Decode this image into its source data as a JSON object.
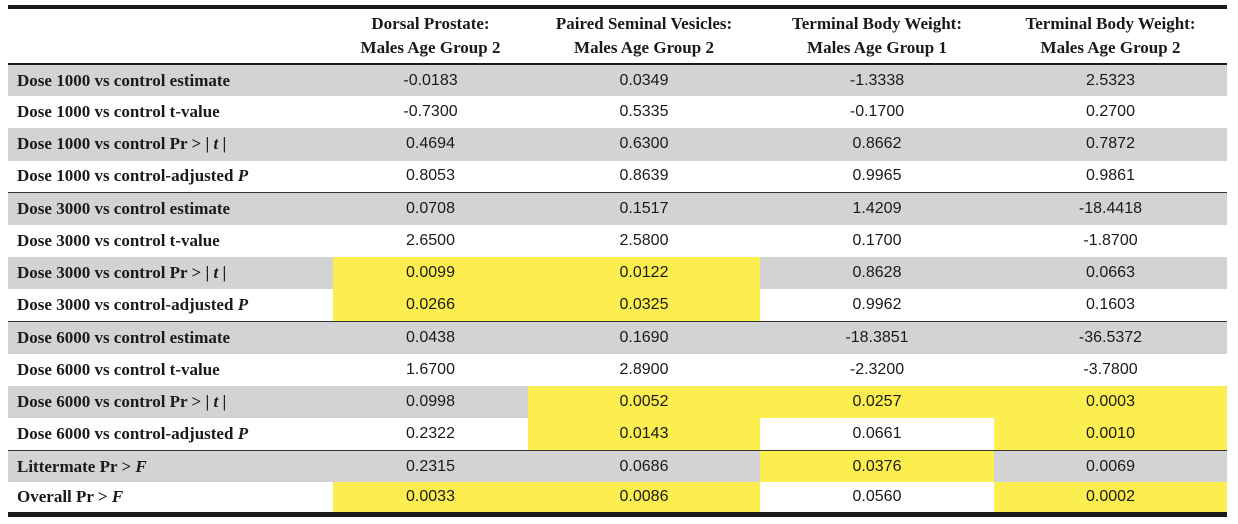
{
  "table": {
    "headers": [
      "",
      "Dorsal Prostate: Males Age Group 2",
      "Paired Seminal Vesicles: Males Age Group 2",
      "Terminal Body Weight: Males Age Group 1",
      "Terminal Body Weight: Males Age Group 2"
    ],
    "header_lines": [
      [
        "",
        ""
      ],
      [
        "Dorsal Prostate:",
        "Males Age Group 2"
      ],
      [
        "Paired Seminal Vesicles:",
        "Males Age Group 2"
      ],
      [
        "Terminal Body Weight:",
        "Males Age Group 1"
      ],
      [
        "Terminal Body Weight:",
        "Males Age Group 2"
      ]
    ],
    "rows": [
      {
        "label": "Dose 1000 vs control estimate",
        "label_parts": [
          "Dose 1000 vs control estimate"
        ],
        "values": [
          "-0.0183",
          "0.0349",
          "-1.3338",
          "2.5323"
        ],
        "highlight": [
          false,
          false,
          false,
          false
        ],
        "shade": "gray",
        "group_start": false
      },
      {
        "label": "Dose 1000 vs control t-value",
        "label_parts": [
          "Dose 1000 vs control t-value"
        ],
        "values": [
          "-0.7300",
          "0.5335",
          "-0.1700",
          "0.2700"
        ],
        "highlight": [
          false,
          false,
          false,
          false
        ],
        "shade": "white",
        "group_start": false
      },
      {
        "label": "Dose 1000 vs control Pr > | t |",
        "label_parts": [
          "Dose 1000 vs control Pr > | ",
          "t",
          " |"
        ],
        "values": [
          "0.4694",
          "0.6300",
          "0.8662",
          "0.7872"
        ],
        "highlight": [
          false,
          false,
          false,
          false
        ],
        "shade": "gray",
        "group_start": false
      },
      {
        "label": "Dose 1000 vs control-adjusted P",
        "label_parts": [
          "Dose 1000 vs control-adjusted ",
          "P",
          ""
        ],
        "values": [
          "0.8053",
          "0.8639",
          "0.9965",
          "0.9861"
        ],
        "highlight": [
          false,
          false,
          false,
          false
        ],
        "shade": "white",
        "group_start": false
      },
      {
        "label": "Dose 3000 vs control estimate",
        "label_parts": [
          "Dose 3000 vs control estimate"
        ],
        "values": [
          "0.0708",
          "0.1517",
          "1.4209",
          "-18.4418"
        ],
        "highlight": [
          false,
          false,
          false,
          false
        ],
        "shade": "gray",
        "group_start": true
      },
      {
        "label": "Dose 3000 vs control t-value",
        "label_parts": [
          "Dose 3000 vs control t-value"
        ],
        "values": [
          "2.6500",
          "2.5800",
          "0.1700",
          "-1.8700"
        ],
        "highlight": [
          false,
          false,
          false,
          false
        ],
        "shade": "white",
        "group_start": false
      },
      {
        "label": "Dose 3000 vs control Pr > | t |",
        "label_parts": [
          "Dose 3000 vs control Pr > | ",
          "t",
          " |"
        ],
        "values": [
          "0.0099",
          "0.0122",
          "0.8628",
          "0.0663"
        ],
        "highlight": [
          true,
          true,
          false,
          false
        ],
        "shade": "gray",
        "group_start": false
      },
      {
        "label": "Dose 3000 vs control-adjusted P",
        "label_parts": [
          "Dose 3000 vs control-adjusted ",
          "P",
          ""
        ],
        "values": [
          "0.0266",
          "0.0325",
          "0.9962",
          "0.1603"
        ],
        "highlight": [
          true,
          true,
          false,
          false
        ],
        "shade": "white",
        "group_start": false
      },
      {
        "label": "Dose 6000 vs control estimate",
        "label_parts": [
          "Dose 6000 vs control estimate"
        ],
        "values": [
          "0.0438",
          "0.1690",
          "-18.3851",
          "-36.5372"
        ],
        "highlight": [
          false,
          false,
          false,
          false
        ],
        "shade": "gray",
        "group_start": true
      },
      {
        "label": "Dose 6000 vs control t-value",
        "label_parts": [
          "Dose 6000 vs control t-value"
        ],
        "values": [
          "1.6700",
          "2.8900",
          "-2.3200",
          "-3.7800"
        ],
        "highlight": [
          false,
          false,
          false,
          false
        ],
        "shade": "white",
        "group_start": false
      },
      {
        "label": "Dose 6000 vs control Pr > | t |",
        "label_parts": [
          "Dose 6000 vs control Pr > | ",
          "t",
          " |"
        ],
        "values": [
          "0.0998",
          "0.0052",
          "0.0257",
          "0.0003"
        ],
        "highlight": [
          false,
          true,
          true,
          true
        ],
        "shade": "gray",
        "group_start": false
      },
      {
        "label": "Dose 6000 vs control-adjusted P",
        "label_parts": [
          "Dose 6000 vs control-adjusted ",
          "P",
          ""
        ],
        "values": [
          "0.2322",
          "0.0143",
          "0.0661",
          "0.0010"
        ],
        "highlight": [
          false,
          true,
          false,
          true
        ],
        "shade": "white",
        "group_start": false
      },
      {
        "label": "Littermate Pr > F",
        "label_parts": [
          "Littermate Pr > ",
          "F",
          ""
        ],
        "values": [
          "0.2315",
          "0.0686",
          "0.0376",
          "0.0069"
        ],
        "highlight": [
          false,
          false,
          true,
          false
        ],
        "shade": "gray",
        "group_start": true
      },
      {
        "label": "Overall Pr > F",
        "label_parts": [
          "Overall Pr > ",
          "F",
          ""
        ],
        "values": [
          "0.0033",
          "0.0086",
          "0.0560",
          "0.0002"
        ],
        "highlight": [
          true,
          true,
          false,
          true
        ],
        "shade": "white",
        "group_start": false
      }
    ]
  },
  "colors": {
    "row_shade": "#d3d3d5",
    "highlight": "#fdee4f",
    "rule": "#1a1a1a"
  }
}
